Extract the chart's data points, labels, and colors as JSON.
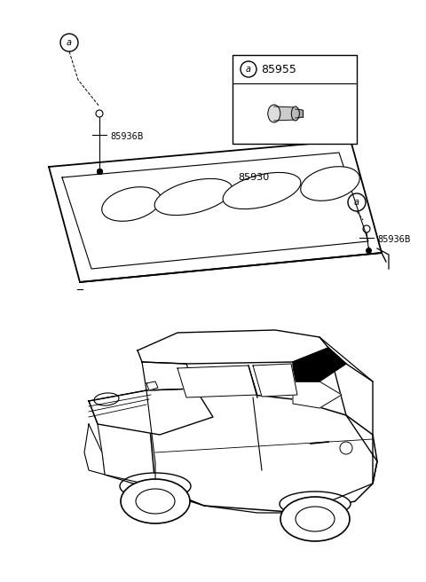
{
  "bg_color": "#ffffff",
  "line_color": "#000000",
  "fig_width": 4.8,
  "fig_height": 6.56,
  "dpi": 100,
  "label_85936B": "85936B",
  "label_85930": "85930",
  "label_85955": "85955",
  "label_a": "a"
}
